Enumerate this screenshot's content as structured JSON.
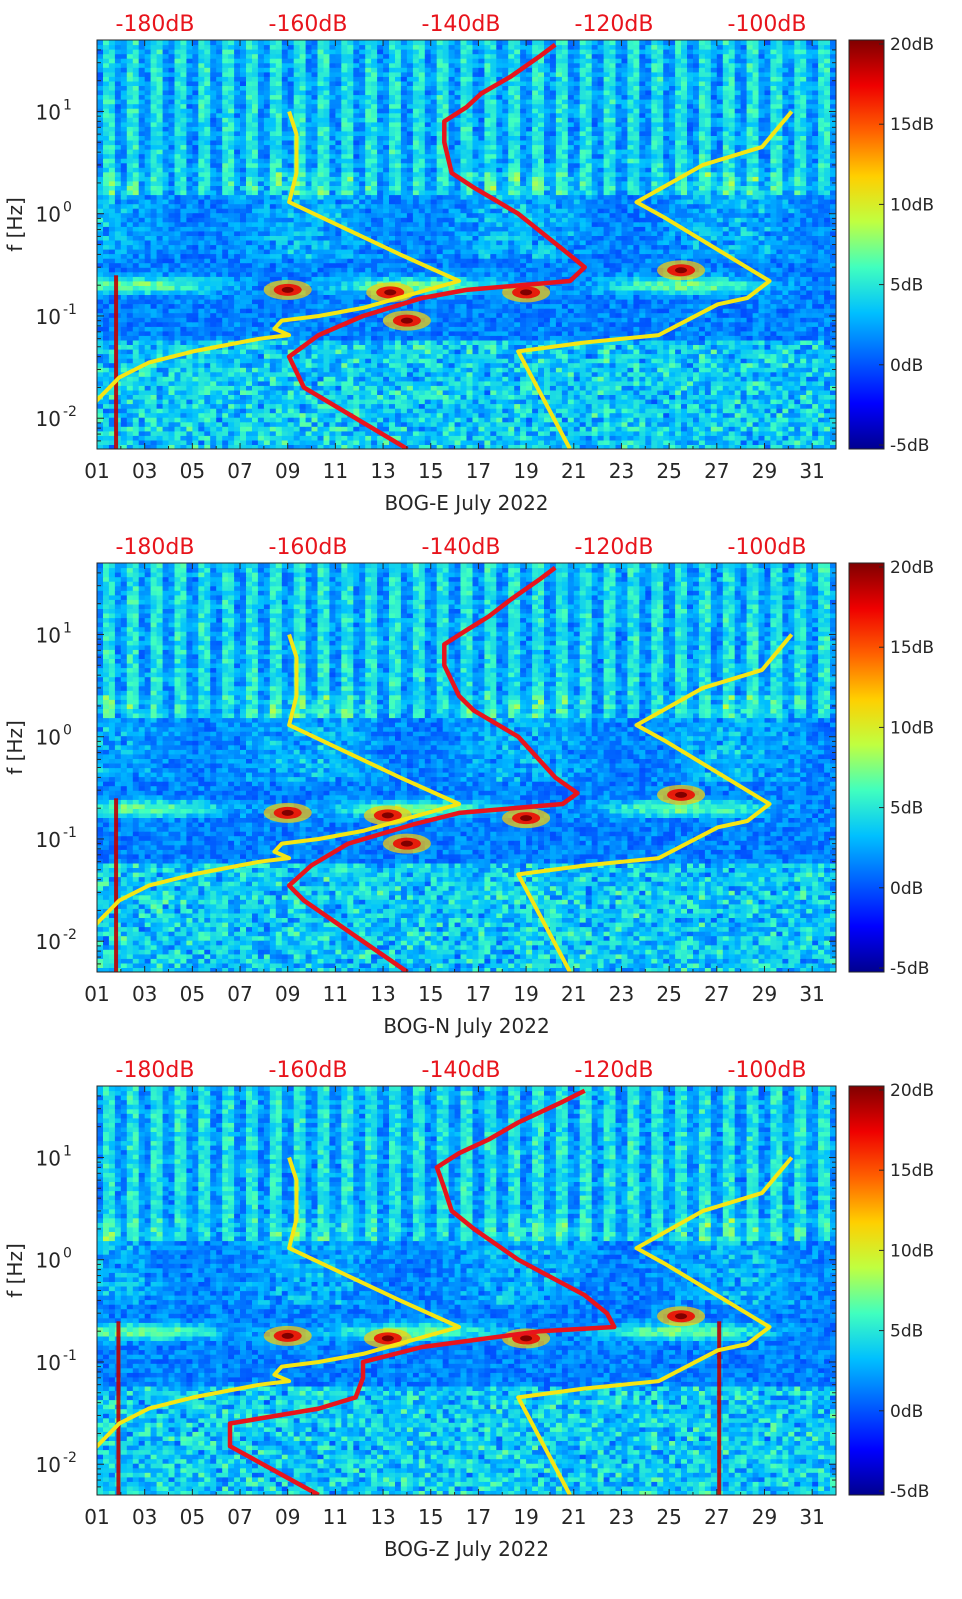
{
  "figure": {
    "title": ""
  },
  "colormap": [
    "#00008f",
    "#0000ff",
    "#0060ff",
    "#00c0ff",
    "#40ffbf",
    "#c0ff40",
    "#ffcf00",
    "#ff6000",
    "#ef0000",
    "#800000"
  ],
  "chart_data": [
    {
      "type": "heatmap",
      "title": "",
      "xlabel": "BOG-E July 2022",
      "ylabel": "f [Hz]",
      "x_ticks": [
        "01",
        "03",
        "05",
        "07",
        "09",
        "11",
        "13",
        "15",
        "17",
        "19",
        "21",
        "23",
        "25",
        "27",
        "29",
        "31"
      ],
      "xlim": [
        1,
        32
      ],
      "y_ticks": [
        {
          "label": "10",
          "exp": "1"
        },
        {
          "label": "10",
          "exp": "0"
        },
        {
          "label": "10",
          "exp": "-1"
        },
        {
          "label": "10",
          "exp": "-2"
        }
      ],
      "ylim_hz": [
        0.005,
        50
      ],
      "top_axis_labels": [
        "-180dB",
        "-160dB",
        "-140dB",
        "-120dB",
        "-100dB"
      ],
      "top_axis_range_db": [
        -190,
        -90
      ],
      "colorbar": {
        "labels": [
          "20dB",
          "15dB",
          "10dB",
          "5dB",
          "0dB",
          "-5dB"
        ],
        "range_db": [
          -5,
          20
        ]
      },
      "features": {
        "microseism_band_hz": 0.2,
        "hotspots": [
          [
            9,
            0.18
          ],
          [
            13.3,
            0.17
          ],
          [
            14,
            0.09
          ],
          [
            25.5,
            0.28
          ],
          [
            19,
            0.17
          ]
        ],
        "bright_day_columns": [
          1.8
        ]
      },
      "series": [
        {
          "name": "noise model low",
          "color": "#f5e614",
          "points": [
            [
              -195,
              0.005
            ],
            [
              -190,
              0.015
            ],
            [
              -187,
              0.025
            ],
            [
              -183,
              0.035
            ],
            [
              -177,
              0.045
            ],
            [
              -168,
              0.06
            ],
            [
              -164,
              0.065
            ],
            [
              -166,
              0.075
            ],
            [
              -165,
              0.09
            ],
            [
              -160,
              0.1
            ],
            [
              -154,
              0.12
            ],
            [
              -141,
              0.22
            ],
            [
              -149,
              0.4
            ],
            [
              -164,
              1.3
            ],
            [
              -163,
              2.5
            ],
            [
              -163,
              6
            ],
            [
              -164,
              10
            ]
          ]
        },
        {
          "name": "noise model high",
          "color": "#f5e614",
          "points": [
            [
              -126,
              0.005
            ],
            [
              -133,
              0.045
            ],
            [
              -124,
              0.055
            ],
            [
              -114,
              0.065
            ],
            [
              -106,
              0.13
            ],
            [
              -102,
              0.15
            ],
            [
              -99,
              0.22
            ],
            [
              -113,
              0.9
            ],
            [
              -117,
              1.3
            ],
            [
              -108,
              3.0
            ],
            [
              -100,
              4.5
            ],
            [
              -96,
              10
            ]
          ]
        },
        {
          "name": "station noise PSD",
          "color": "#e8141c",
          "points": [
            [
              -148,
              0.005
            ],
            [
              -162,
              0.02
            ],
            [
              -164,
              0.04
            ],
            [
              -160,
              0.065
            ],
            [
              -154,
              0.1
            ],
            [
              -146,
              0.15
            ],
            [
              -140,
              0.18
            ],
            [
              -126,
              0.22
            ],
            [
              -124,
              0.3
            ],
            [
              -127,
              0.45
            ],
            [
              -133,
              1.0
            ],
            [
              -139,
              1.8
            ],
            [
              -142,
              2.5
            ],
            [
              -143,
              5
            ],
            [
              -143,
              8
            ],
            [
              -140,
              11
            ],
            [
              -138,
              15
            ],
            [
              -134,
              22
            ],
            [
              -130,
              35
            ],
            [
              -128,
              45
            ]
          ]
        }
      ]
    },
    {
      "type": "heatmap",
      "title": "",
      "xlabel": "BOG-N July 2022",
      "ylabel": "f [Hz]",
      "x_ticks": [
        "01",
        "03",
        "05",
        "07",
        "09",
        "11",
        "13",
        "15",
        "17",
        "19",
        "21",
        "23",
        "25",
        "27",
        "29",
        "31"
      ],
      "xlim": [
        1,
        32
      ],
      "y_ticks": [
        {
          "label": "10",
          "exp": "1"
        },
        {
          "label": "10",
          "exp": "0"
        },
        {
          "label": "10",
          "exp": "-1"
        },
        {
          "label": "10",
          "exp": "-2"
        }
      ],
      "ylim_hz": [
        0.005,
        50
      ],
      "top_axis_labels": [
        "-180dB",
        "-160dB",
        "-140dB",
        "-120dB",
        "-100dB"
      ],
      "top_axis_range_db": [
        -190,
        -90
      ],
      "colorbar": {
        "labels": [
          "20dB",
          "15dB",
          "10dB",
          "5dB",
          "0dB",
          "-5dB"
        ],
        "range_db": [
          -5,
          20
        ]
      },
      "features": {
        "microseism_band_hz": 0.2,
        "hotspots": [
          [
            9,
            0.18
          ],
          [
            13.2,
            0.17
          ],
          [
            14,
            0.09
          ],
          [
            25.5,
            0.27
          ],
          [
            19,
            0.16
          ]
        ],
        "bright_day_columns": [
          1.8
        ]
      },
      "series": [
        {
          "name": "noise model low",
          "color": "#f5e614",
          "points": [
            [
              -195,
              0.005
            ],
            [
              -190,
              0.015
            ],
            [
              -187,
              0.025
            ],
            [
              -183,
              0.035
            ],
            [
              -177,
              0.045
            ],
            [
              -168,
              0.06
            ],
            [
              -164,
              0.065
            ],
            [
              -166,
              0.075
            ],
            [
              -165,
              0.09
            ],
            [
              -160,
              0.1
            ],
            [
              -154,
              0.12
            ],
            [
              -141,
              0.22
            ],
            [
              -149,
              0.4
            ],
            [
              -164,
              1.3
            ],
            [
              -163,
              2.5
            ],
            [
              -163,
              6
            ],
            [
              -164,
              10
            ]
          ]
        },
        {
          "name": "noise model high",
          "color": "#f5e614",
          "points": [
            [
              -126,
              0.005
            ],
            [
              -133,
              0.045
            ],
            [
              -124,
              0.055
            ],
            [
              -114,
              0.065
            ],
            [
              -106,
              0.13
            ],
            [
              -102,
              0.15
            ],
            [
              -99,
              0.22
            ],
            [
              -113,
              0.9
            ],
            [
              -117,
              1.3
            ],
            [
              -108,
              3.0
            ],
            [
              -100,
              4.5
            ],
            [
              -96,
              10
            ]
          ]
        },
        {
          "name": "station noise PSD",
          "color": "#e8141c",
          "points": [
            [
              -148,
              0.005
            ],
            [
              -162,
              0.025
            ],
            [
              -164,
              0.035
            ],
            [
              -161,
              0.055
            ],
            [
              -156,
              0.09
            ],
            [
              -147,
              0.14
            ],
            [
              -141,
              0.18
            ],
            [
              -127,
              0.22
            ],
            [
              -125,
              0.28
            ],
            [
              -128,
              0.4
            ],
            [
              -133,
              1.0
            ],
            [
              -139,
              1.8
            ],
            [
              -141,
              2.5
            ],
            [
              -143,
              5
            ],
            [
              -143,
              8
            ],
            [
              -140,
              11
            ],
            [
              -137,
              15
            ],
            [
              -134,
              22
            ],
            [
              -130,
              35
            ],
            [
              -128,
              45
            ]
          ]
        }
      ]
    },
    {
      "type": "heatmap",
      "title": "",
      "xlabel": "BOG-Z July 2022",
      "ylabel": "f [Hz]",
      "x_ticks": [
        "01",
        "03",
        "05",
        "07",
        "09",
        "11",
        "13",
        "15",
        "17",
        "19",
        "21",
        "23",
        "25",
        "27",
        "29",
        "31"
      ],
      "xlim": [
        1,
        32
      ],
      "y_ticks": [
        {
          "label": "10",
          "exp": "1"
        },
        {
          "label": "10",
          "exp": "0"
        },
        {
          "label": "10",
          "exp": "-1"
        },
        {
          "label": "10",
          "exp": "-2"
        }
      ],
      "ylim_hz": [
        0.005,
        50
      ],
      "top_axis_labels": [
        "-180dB",
        "-160dB",
        "-140dB",
        "-120dB",
        "-100dB"
      ],
      "top_axis_range_db": [
        -190,
        -90
      ],
      "colorbar": {
        "labels": [
          "20dB",
          "15dB",
          "10dB",
          "5dB",
          "0dB",
          "-5dB"
        ],
        "range_db": [
          -5,
          20
        ]
      },
      "features": {
        "microseism_band_hz": 0.2,
        "hotspots": [
          [
            9,
            0.18
          ],
          [
            13.2,
            0.17
          ],
          [
            25.5,
            0.28
          ],
          [
            19,
            0.17
          ]
        ],
        "bright_day_columns": [
          1.9,
          27.1
        ]
      },
      "series": [
        {
          "name": "noise model low",
          "color": "#f5e614",
          "points": [
            [
              -195,
              0.005
            ],
            [
              -190,
              0.015
            ],
            [
              -187,
              0.025
            ],
            [
              -183,
              0.035
            ],
            [
              -177,
              0.045
            ],
            [
              -168,
              0.06
            ],
            [
              -164,
              0.065
            ],
            [
              -166,
              0.075
            ],
            [
              -165,
              0.09
            ],
            [
              -160,
              0.1
            ],
            [
              -154,
              0.12
            ],
            [
              -141,
              0.22
            ],
            [
              -149,
              0.4
            ],
            [
              -164,
              1.3
            ],
            [
              -163,
              2.5
            ],
            [
              -163,
              6
            ],
            [
              -164,
              10
            ]
          ]
        },
        {
          "name": "noise model high",
          "color": "#f5e614",
          "points": [
            [
              -126,
              0.005
            ],
            [
              -133,
              0.045
            ],
            [
              -124,
              0.055
            ],
            [
              -114,
              0.065
            ],
            [
              -106,
              0.13
            ],
            [
              -102,
              0.15
            ],
            [
              -99,
              0.22
            ],
            [
              -113,
              0.9
            ],
            [
              -117,
              1.3
            ],
            [
              -108,
              3.0
            ],
            [
              -100,
              4.5
            ],
            [
              -96,
              10
            ]
          ]
        },
        {
          "name": "station noise PSD",
          "color": "#e8141c",
          "points": [
            [
              -160,
              0.005
            ],
            [
              -172,
              0.015
            ],
            [
              -172,
              0.025
            ],
            [
              -160,
              0.035
            ],
            [
              -155,
              0.045
            ],
            [
              -154,
              0.07
            ],
            [
              -154,
              0.1
            ],
            [
              -146,
              0.14
            ],
            [
              -130,
              0.2
            ],
            [
              -120,
              0.22
            ],
            [
              -121,
              0.3
            ],
            [
              -124,
              0.45
            ],
            [
              -133,
              1.0
            ],
            [
              -139,
              2.0
            ],
            [
              -142,
              3.0
            ],
            [
              -143,
              5
            ],
            [
              -144,
              8
            ],
            [
              -141,
              11
            ],
            [
              -137,
              15
            ],
            [
              -133,
              22
            ],
            [
              -127,
              35
            ],
            [
              -124,
              45
            ]
          ]
        }
      ]
    }
  ]
}
